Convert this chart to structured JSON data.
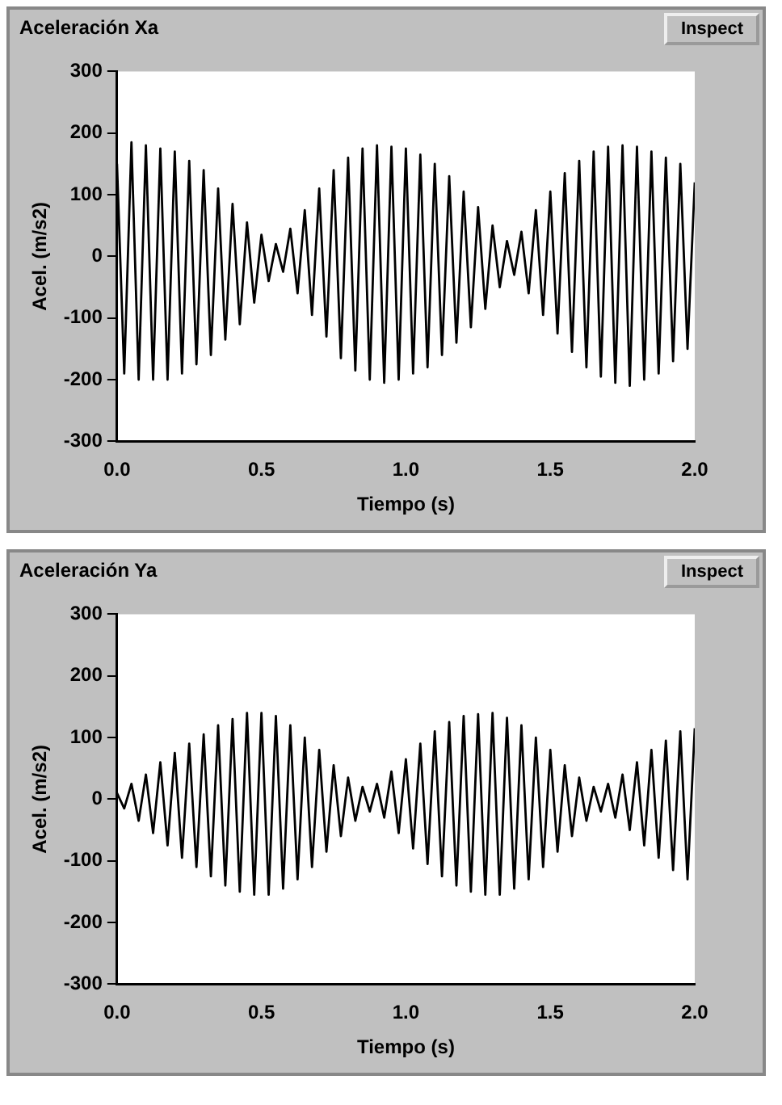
{
  "chart_data": [
    {
      "type": "line",
      "title": "Aceleración Xa",
      "annotations": [
        "Inspect"
      ],
      "xlabel": "Tiempo (s)",
      "ylabel": "Acel. (m/s2)",
      "grid": false,
      "legend": false,
      "marker": "none",
      "line_style": "solid",
      "xlim": [
        0,
        2
      ],
      "xticks": [
        {
          "value": 0,
          "label": "0.0"
        },
        {
          "value": 0.5,
          "label": "0.5"
        },
        {
          "value": 1,
          "label": "1.0"
        },
        {
          "value": 1.5,
          "label": "1.5"
        },
        {
          "value": 2,
          "label": "2.0"
        }
      ],
      "ylim": [
        -300,
        300
      ],
      "yticks": [
        -300,
        -200,
        -100,
        0,
        100,
        200,
        300
      ],
      "x": [
        0,
        0.025,
        0.05,
        0.075,
        0.1,
        0.125,
        0.15,
        0.175,
        0.2,
        0.225,
        0.25,
        0.275,
        0.3,
        0.325,
        0.35,
        0.375,
        0.4,
        0.425,
        0.45,
        0.475,
        0.5,
        0.525,
        0.55,
        0.575,
        0.6,
        0.625,
        0.65,
        0.675,
        0.7,
        0.725,
        0.75,
        0.775,
        0.8,
        0.825,
        0.85,
        0.875,
        0.9,
        0.925,
        0.95,
        0.975,
        1,
        1.025,
        1.05,
        1.075,
        1.1,
        1.125,
        1.15,
        1.175,
        1.2,
        1.225,
        1.25,
        1.275,
        1.3,
        1.325,
        1.35,
        1.375,
        1.4,
        1.425,
        1.45,
        1.475,
        1.5,
        1.525,
        1.55,
        1.575,
        1.6,
        1.625,
        1.65,
        1.675,
        1.7,
        1.725,
        1.75,
        1.775,
        1.8,
        1.825,
        1.85,
        1.875,
        1.9,
        1.925,
        1.95,
        1.975,
        2
      ],
      "series": [
        {
          "color": "#000000",
          "values": [
            150,
            -190,
            185,
            -200,
            180,
            -200,
            175,
            -200,
            170,
            -190,
            155,
            -175,
            140,
            -160,
            110,
            -135,
            85,
            -110,
            55,
            -75,
            35,
            -40,
            20,
            -25,
            45,
            -60,
            75,
            -95,
            110,
            -130,
            140,
            -165,
            160,
            -185,
            175,
            -200,
            180,
            -205,
            178,
            -200,
            175,
            -190,
            165,
            -180,
            150,
            -160,
            130,
            -140,
            105,
            -115,
            80,
            -85,
            50,
            -50,
            25,
            -30,
            40,
            -60,
            75,
            -95,
            105,
            -125,
            135,
            -155,
            155,
            -180,
            170,
            -195,
            178,
            -205,
            180,
            -210,
            178,
            -200,
            170,
            -190,
            160,
            -170,
            150,
            -150,
            120
          ]
        }
      ]
    },
    {
      "type": "line",
      "title": "Aceleración Ya",
      "annotations": [
        "Inspect"
      ],
      "xlabel": "Tiempo (s)",
      "ylabel": "Acel. (m/s2)",
      "grid": false,
      "legend": false,
      "marker": "none",
      "line_style": "solid",
      "xlim": [
        0,
        2
      ],
      "xticks": [
        {
          "value": 0,
          "label": "0.0"
        },
        {
          "value": 0.5,
          "label": "0.5"
        },
        {
          "value": 1,
          "label": "1.0"
        },
        {
          "value": 1.5,
          "label": "1.5"
        },
        {
          "value": 2,
          "label": "2.0"
        }
      ],
      "ylim": [
        -300,
        300
      ],
      "yticks": [
        -300,
        -200,
        -100,
        0,
        100,
        200,
        300
      ],
      "x": [
        0,
        0.025,
        0.05,
        0.075,
        0.1,
        0.125,
        0.15,
        0.175,
        0.2,
        0.225,
        0.25,
        0.275,
        0.3,
        0.325,
        0.35,
        0.375,
        0.4,
        0.425,
        0.45,
        0.475,
        0.5,
        0.525,
        0.55,
        0.575,
        0.6,
        0.625,
        0.65,
        0.675,
        0.7,
        0.725,
        0.75,
        0.775,
        0.8,
        0.825,
        0.85,
        0.875,
        0.9,
        0.925,
        0.95,
        0.975,
        1,
        1.025,
        1.05,
        1.075,
        1.1,
        1.125,
        1.15,
        1.175,
        1.2,
        1.225,
        1.25,
        1.275,
        1.3,
        1.325,
        1.35,
        1.375,
        1.4,
        1.425,
        1.45,
        1.475,
        1.5,
        1.525,
        1.55,
        1.575,
        1.6,
        1.625,
        1.65,
        1.675,
        1.7,
        1.725,
        1.75,
        1.775,
        1.8,
        1.825,
        1.85,
        1.875,
        1.9,
        1.925,
        1.95,
        1.975,
        2
      ],
      "series": [
        {
          "color": "#000000",
          "values": [
            10,
            -15,
            25,
            -35,
            40,
            -55,
            60,
            -75,
            75,
            -95,
            90,
            -110,
            105,
            -125,
            120,
            -140,
            130,
            -150,
            140,
            -155,
            140,
            -155,
            135,
            -145,
            120,
            -130,
            100,
            -110,
            80,
            -85,
            55,
            -60,
            35,
            -35,
            20,
            -20,
            25,
            -30,
            45,
            -55,
            65,
            -80,
            90,
            -105,
            110,
            -125,
            125,
            -140,
            135,
            -150,
            138,
            -155,
            140,
            -155,
            132,
            -145,
            120,
            -130,
            100,
            -110,
            80,
            -85,
            55,
            -60,
            35,
            -35,
            20,
            -20,
            25,
            -30,
            40,
            -50,
            60,
            -75,
            80,
            -95,
            95,
            -115,
            110,
            -130,
            115
          ]
        }
      ]
    }
  ]
}
